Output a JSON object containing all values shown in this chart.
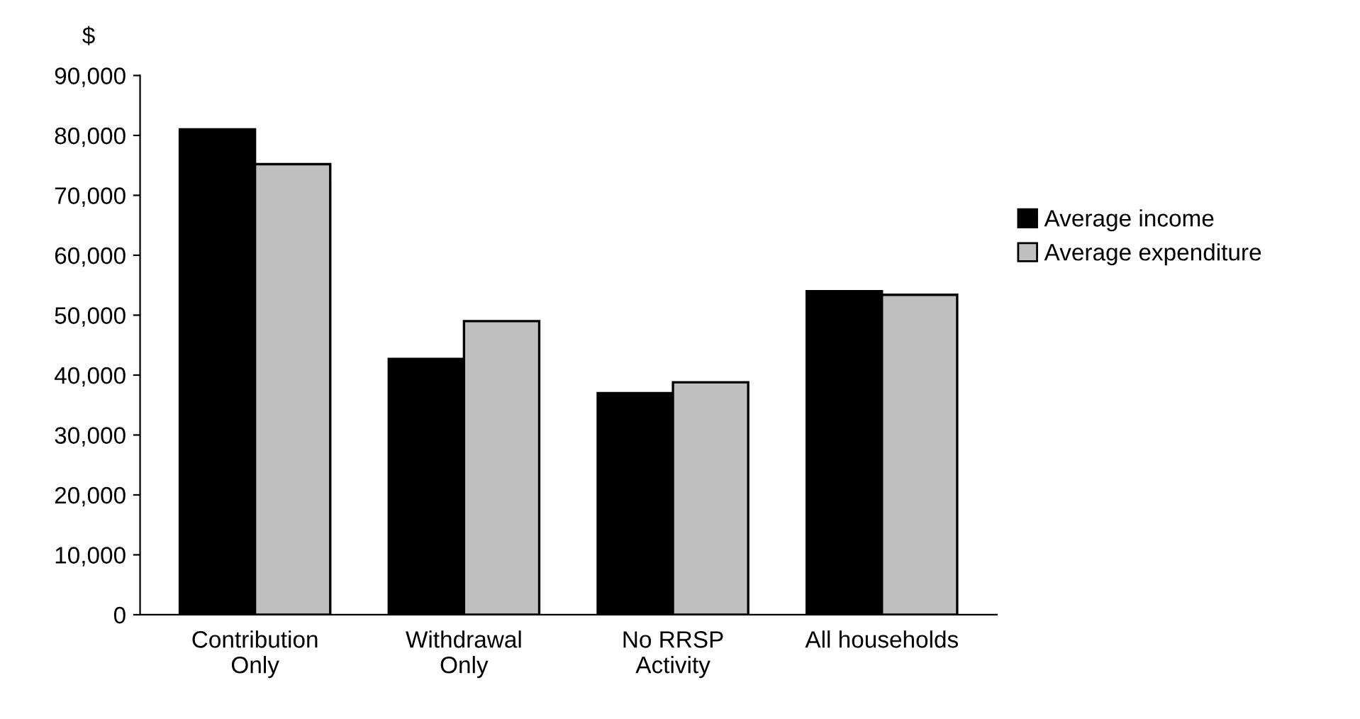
{
  "chart_data": {
    "type": "bar",
    "ylabel": "$",
    "categories": [
      "Contribution\nOnly",
      "Withdrawal\nOnly",
      "No RRSP\nActivity",
      "All households"
    ],
    "series": [
      {
        "name": "Average income",
        "color": "#000000",
        "values": [
          81000,
          42700,
          37000,
          54000
        ]
      },
      {
        "name": "Average expenditure",
        "color": "#c0c0c0",
        "values": [
          75200,
          49000,
          38800,
          53400
        ]
      }
    ],
    "ylim": [
      0,
      90000
    ],
    "yticks": [
      {
        "value": 0,
        "label": "0"
      },
      {
        "value": 10000,
        "label": "10,000"
      },
      {
        "value": 20000,
        "label": "20,000"
      },
      {
        "value": 30000,
        "label": "30,000"
      },
      {
        "value": 40000,
        "label": "40,000"
      },
      {
        "value": 50000,
        "label": "50,000"
      },
      {
        "value": 60000,
        "label": "60,000"
      },
      {
        "value": 70000,
        "label": "70,000"
      },
      {
        "value": 80000,
        "label": "80,000"
      },
      {
        "value": 90000,
        "label": "90,000"
      }
    ],
    "grid": false,
    "legend": "right"
  }
}
